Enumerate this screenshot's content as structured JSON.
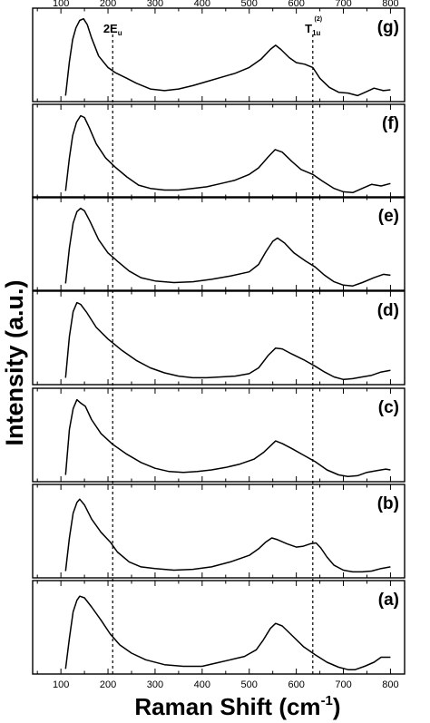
{
  "chart_data": {
    "type": "line",
    "xlabel": "Raman Shift (cm",
    "xlabel_sup": "-1",
    "xlabel_end": ")",
    "ylabel": "Intensity (a.u.)",
    "xlim": [
      40,
      830
    ],
    "xticks": [
      100,
      200,
      300,
      400,
      500,
      600,
      700,
      800
    ],
    "grid": false,
    "reference_lines": [
      {
        "x": 210,
        "label_main": "2E",
        "label_sub": "u",
        "label_sup": ""
      },
      {
        "x": 635,
        "label_main": "T",
        "label_sub": "1u",
        "label_sup": "(2)"
      }
    ],
    "panels": [
      {
        "label": "(g)",
        "points": [
          [
            110,
            0.04
          ],
          [
            118,
            0.45
          ],
          [
            125,
            0.72
          ],
          [
            132,
            0.86
          ],
          [
            140,
            0.95
          ],
          [
            148,
            0.97
          ],
          [
            156,
            0.9
          ],
          [
            165,
            0.74
          ],
          [
            180,
            0.52
          ],
          [
            200,
            0.38
          ],
          [
            215,
            0.32
          ],
          [
            240,
            0.25
          ],
          [
            260,
            0.19
          ],
          [
            290,
            0.12
          ],
          [
            320,
            0.1
          ],
          [
            350,
            0.12
          ],
          [
            380,
            0.16
          ],
          [
            410,
            0.21
          ],
          [
            440,
            0.26
          ],
          [
            470,
            0.31
          ],
          [
            500,
            0.38
          ],
          [
            525,
            0.48
          ],
          [
            545,
            0.6
          ],
          [
            556,
            0.65
          ],
          [
            567,
            0.6
          ],
          [
            585,
            0.5
          ],
          [
            600,
            0.44
          ],
          [
            618,
            0.42
          ],
          [
            635,
            0.38
          ],
          [
            650,
            0.25
          ],
          [
            670,
            0.14
          ],
          [
            690,
            0.08
          ],
          [
            710,
            0.07
          ],
          [
            730,
            0.04
          ],
          [
            750,
            0.09
          ],
          [
            765,
            0.13
          ],
          [
            785,
            0.1
          ],
          [
            800,
            0.11
          ]
        ]
      },
      {
        "label": "(f)",
        "points": [
          [
            110,
            0.05
          ],
          [
            118,
            0.45
          ],
          [
            125,
            0.72
          ],
          [
            133,
            0.88
          ],
          [
            142,
            0.96
          ],
          [
            150,
            0.94
          ],
          [
            160,
            0.82
          ],
          [
            175,
            0.62
          ],
          [
            195,
            0.45
          ],
          [
            215,
            0.34
          ],
          [
            240,
            0.22
          ],
          [
            265,
            0.12
          ],
          [
            290,
            0.08
          ],
          [
            320,
            0.06
          ],
          [
            350,
            0.06
          ],
          [
            380,
            0.08
          ],
          [
            410,
            0.1
          ],
          [
            440,
            0.14
          ],
          [
            470,
            0.18
          ],
          [
            500,
            0.25
          ],
          [
            520,
            0.33
          ],
          [
            540,
            0.46
          ],
          [
            555,
            0.55
          ],
          [
            570,
            0.52
          ],
          [
            590,
            0.41
          ],
          [
            610,
            0.31
          ],
          [
            635,
            0.25
          ],
          [
            655,
            0.17
          ],
          [
            680,
            0.08
          ],
          [
            700,
            0.04
          ],
          [
            720,
            0.03
          ],
          [
            740,
            0.08
          ],
          [
            760,
            0.13
          ],
          [
            780,
            0.11
          ],
          [
            800,
            0.14
          ]
        ]
      },
      {
        "label": "(e)",
        "points": [
          [
            110,
            0.05
          ],
          [
            118,
            0.48
          ],
          [
            126,
            0.78
          ],
          [
            134,
            0.92
          ],
          [
            142,
            0.96
          ],
          [
            150,
            0.93
          ],
          [
            162,
            0.8
          ],
          [
            180,
            0.58
          ],
          [
            200,
            0.42
          ],
          [
            220,
            0.32
          ],
          [
            245,
            0.2
          ],
          [
            270,
            0.12
          ],
          [
            300,
            0.08
          ],
          [
            340,
            0.06
          ],
          [
            380,
            0.07
          ],
          [
            420,
            0.1
          ],
          [
            460,
            0.14
          ],
          [
            500,
            0.19
          ],
          [
            520,
            0.28
          ],
          [
            535,
            0.43
          ],
          [
            550,
            0.56
          ],
          [
            560,
            0.6
          ],
          [
            575,
            0.54
          ],
          [
            595,
            0.42
          ],
          [
            620,
            0.32
          ],
          [
            640,
            0.25
          ],
          [
            660,
            0.15
          ],
          [
            680,
            0.07
          ],
          [
            700,
            0.03
          ],
          [
            720,
            0.02
          ],
          [
            740,
            0.06
          ],
          [
            765,
            0.12
          ],
          [
            785,
            0.16
          ],
          [
            800,
            0.15
          ]
        ]
      },
      {
        "label": "(d)",
        "points": [
          [
            110,
            0.05
          ],
          [
            118,
            0.55
          ],
          [
            126,
            0.85
          ],
          [
            134,
            0.96
          ],
          [
            142,
            0.94
          ],
          [
            155,
            0.84
          ],
          [
            175,
            0.66
          ],
          [
            200,
            0.52
          ],
          [
            230,
            0.38
          ],
          [
            260,
            0.26
          ],
          [
            290,
            0.17
          ],
          [
            320,
            0.11
          ],
          [
            350,
            0.07
          ],
          [
            380,
            0.05
          ],
          [
            410,
            0.05
          ],
          [
            440,
            0.06
          ],
          [
            470,
            0.07
          ],
          [
            500,
            0.1
          ],
          [
            520,
            0.17
          ],
          [
            540,
            0.32
          ],
          [
            556,
            0.41
          ],
          [
            570,
            0.4
          ],
          [
            590,
            0.34
          ],
          [
            615,
            0.27
          ],
          [
            640,
            0.19
          ],
          [
            660,
            0.12
          ],
          [
            680,
            0.06
          ],
          [
            700,
            0.03
          ],
          [
            720,
            0.04
          ],
          [
            740,
            0.06
          ],
          [
            760,
            0.08
          ],
          [
            780,
            0.12
          ],
          [
            800,
            0.14
          ]
        ]
      },
      {
        "label": "(c)",
        "points": [
          [
            110,
            0.05
          ],
          [
            118,
            0.6
          ],
          [
            126,
            0.85
          ],
          [
            134,
            0.96
          ],
          [
            142,
            0.92
          ],
          [
            152,
            0.88
          ],
          [
            165,
            0.72
          ],
          [
            185,
            0.55
          ],
          [
            210,
            0.42
          ],
          [
            240,
            0.3
          ],
          [
            270,
            0.2
          ],
          [
            300,
            0.13
          ],
          [
            330,
            0.09
          ],
          [
            360,
            0.08
          ],
          [
            390,
            0.09
          ],
          [
            420,
            0.11
          ],
          [
            450,
            0.14
          ],
          [
            480,
            0.18
          ],
          [
            510,
            0.24
          ],
          [
            530,
            0.32
          ],
          [
            545,
            0.4
          ],
          [
            556,
            0.46
          ],
          [
            570,
            0.43
          ],
          [
            590,
            0.37
          ],
          [
            615,
            0.29
          ],
          [
            640,
            0.21
          ],
          [
            665,
            0.11
          ],
          [
            690,
            0.05
          ],
          [
            710,
            0.03
          ],
          [
            730,
            0.04
          ],
          [
            750,
            0.08
          ],
          [
            770,
            0.1
          ],
          [
            790,
            0.12
          ],
          [
            800,
            0.11
          ]
        ]
      },
      {
        "label": "(b)",
        "points": [
          [
            110,
            0.05
          ],
          [
            118,
            0.45
          ],
          [
            126,
            0.75
          ],
          [
            134,
            0.88
          ],
          [
            140,
            0.92
          ],
          [
            150,
            0.85
          ],
          [
            165,
            0.68
          ],
          [
            185,
            0.52
          ],
          [
            205,
            0.4
          ],
          [
            220,
            0.28
          ],
          [
            245,
            0.16
          ],
          [
            270,
            0.1
          ],
          [
            300,
            0.08
          ],
          [
            340,
            0.06
          ],
          [
            380,
            0.07
          ],
          [
            420,
            0.1
          ],
          [
            460,
            0.16
          ],
          [
            500,
            0.24
          ],
          [
            520,
            0.32
          ],
          [
            535,
            0.4
          ],
          [
            548,
            0.45
          ],
          [
            560,
            0.43
          ],
          [
            580,
            0.38
          ],
          [
            600,
            0.34
          ],
          [
            615,
            0.35
          ],
          [
            630,
            0.38
          ],
          [
            642,
            0.39
          ],
          [
            652,
            0.33
          ],
          [
            665,
            0.22
          ],
          [
            680,
            0.12
          ],
          [
            700,
            0.06
          ],
          [
            720,
            0.04
          ],
          [
            740,
            0.04
          ],
          [
            760,
            0.05
          ],
          [
            780,
            0.08
          ],
          [
            800,
            0.1
          ]
        ]
      },
      {
        "label": "(a)",
        "points": [
          [
            110,
            0.03
          ],
          [
            118,
            0.4
          ],
          [
            126,
            0.72
          ],
          [
            134,
            0.86
          ],
          [
            140,
            0.91
          ],
          [
            150,
            0.89
          ],
          [
            165,
            0.78
          ],
          [
            185,
            0.62
          ],
          [
            205,
            0.45
          ],
          [
            225,
            0.32
          ],
          [
            250,
            0.22
          ],
          [
            280,
            0.14
          ],
          [
            320,
            0.08
          ],
          [
            360,
            0.06
          ],
          [
            400,
            0.06
          ],
          [
            430,
            0.1
          ],
          [
            460,
            0.14
          ],
          [
            490,
            0.18
          ],
          [
            515,
            0.26
          ],
          [
            530,
            0.38
          ],
          [
            545,
            0.52
          ],
          [
            556,
            0.58
          ],
          [
            570,
            0.55
          ],
          [
            590,
            0.44
          ],
          [
            615,
            0.3
          ],
          [
            640,
            0.2
          ],
          [
            665,
            0.11
          ],
          [
            690,
            0.05
          ],
          [
            710,
            0.02
          ],
          [
            725,
            0.02
          ],
          [
            745,
            0.06
          ],
          [
            765,
            0.11
          ],
          [
            780,
            0.17
          ],
          [
            800,
            0.17
          ]
        ]
      }
    ]
  }
}
